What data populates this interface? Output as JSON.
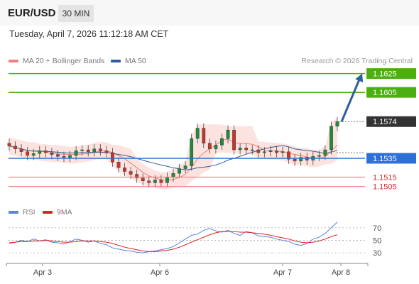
{
  "header": {
    "pair": "EUR/USD",
    "timeframe": "30 MIN"
  },
  "datetime": "Tuesday, April 7, 2026 11:12:18 AM CET",
  "legend": [
    {
      "label": "MA 20 + Bollinger Bands",
      "color": "#f08080"
    },
    {
      "label": "MA 50",
      "color": "#2f5e9e"
    }
  ],
  "credit": "Research © 2026 Trading Central",
  "rsi_legend": [
    {
      "label": "RSI",
      "color": "#5b84d8"
    },
    {
      "label": "9MA",
      "color": "#e02020"
    }
  ],
  "colors": {
    "target": "#4caf10",
    "pivot": "#2f6fd8",
    "support": "#f08080",
    "price": "#333333",
    "arrow": "#2f5e9e",
    "candle_up": "#1e8c3a",
    "candle_down": "#c0392b"
  },
  "chart_data": [
    {
      "type": "candlestick",
      "title": "EUR/USD 30 MIN",
      "x_tick_labels": [
        "Apr 3",
        "Apr 6",
        "Apr 7",
        "Apr 8"
      ],
      "ylim": [
        1.1498,
        1.163
      ],
      "levels": [
        {
          "value": 1.1625,
          "label": "1.1625",
          "kind": "target"
        },
        {
          "value": 1.1605,
          "label": "1.1605",
          "kind": "target"
        },
        {
          "value": 1.1574,
          "label": "1.1574",
          "kind": "last_price"
        },
        {
          "value": 1.1535,
          "label": "1.1535",
          "kind": "pivot"
        },
        {
          "value": 1.1515,
          "label": "1.1515",
          "kind": "support"
        },
        {
          "value": 1.1505,
          "label": "1.1505",
          "kind": "support"
        }
      ],
      "arrow": {
        "from": 1.1574,
        "to": 1.1625,
        "direction": "up"
      },
      "approx_close_path": [
        1.1548,
        1.1545,
        1.1542,
        1.1538,
        1.154,
        1.1543,
        1.1541,
        1.1539,
        1.1537,
        1.1536,
        1.1538,
        1.1543,
        1.1544,
        1.1542,
        1.1545,
        1.1543,
        1.1541,
        1.1531,
        1.1525,
        1.1521,
        1.1518,
        1.1514,
        1.1511,
        1.1509,
        1.1512,
        1.1509,
        1.1515,
        1.1519,
        1.1524,
        1.1527,
        1.1556,
        1.1567,
        1.1551,
        1.1545,
        1.1549,
        1.1556,
        1.1565,
        1.1544,
        1.1546,
        1.1544,
        1.1544,
        1.1541,
        1.1542,
        1.1543,
        1.1541,
        1.1542,
        1.1534,
        1.1532,
        1.1536,
        1.1533,
        1.1537,
        1.1538,
        1.1544,
        1.1569,
        1.1574
      ]
    },
    {
      "type": "line",
      "title": "RSI",
      "y_ticks": [
        70,
        50,
        30
      ],
      "ylim": [
        20,
        80
      ],
      "series": [
        {
          "name": "RSI",
          "values": [
            45,
            47,
            50,
            48,
            52,
            49,
            51,
            47,
            46,
            44,
            48,
            52,
            50,
            47,
            49,
            45,
            43,
            38,
            36,
            34,
            33,
            31,
            30,
            32,
            33,
            35,
            37,
            40,
            46,
            52,
            58,
            60,
            66,
            69,
            65,
            63,
            66,
            61,
            58,
            64,
            62,
            57,
            56,
            55,
            52,
            50,
            48,
            44,
            42,
            45,
            52,
            55,
            61,
            70,
            79
          ]
        },
        {
          "name": "9MA",
          "values": [
            46,
            47,
            48,
            48,
            49,
            49,
            50,
            49,
            48,
            47,
            47,
            48,
            49,
            49,
            49,
            48,
            47,
            45,
            42,
            39,
            37,
            35,
            33,
            32,
            32,
            33,
            34,
            36,
            39,
            43,
            47,
            51,
            55,
            59,
            62,
            64,
            64,
            64,
            63,
            63,
            62,
            61,
            60,
            58,
            56,
            54,
            52,
            49,
            47,
            46,
            47,
            49,
            52,
            56,
            59
          ]
        }
      ]
    }
  ]
}
